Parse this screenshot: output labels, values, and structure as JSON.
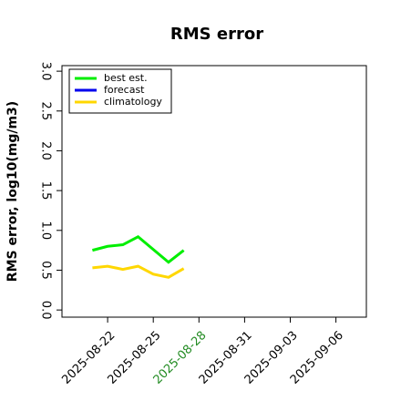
{
  "chart_data": {
    "type": "line",
    "title": "RMS error",
    "ylabel": "RMS error, log10(mg/m3)",
    "x": [
      "2025-08-21",
      "2025-08-22",
      "2025-08-23",
      "2025-08-24",
      "2025-08-25",
      "2025-08-26",
      "2025-08-27"
    ],
    "series": [
      {
        "name": "best est.",
        "color": "#00ee00",
        "values": [
          0.75,
          0.8,
          0.82,
          0.92,
          0.76,
          0.6,
          0.75
        ]
      },
      {
        "name": "forecast",
        "color": "#0000ee",
        "values": [
          null,
          null,
          null,
          null,
          null,
          null,
          null
        ]
      },
      {
        "name": "climatology",
        "color": "#ffd700",
        "values": [
          0.53,
          0.55,
          0.51,
          0.55,
          0.45,
          0.41,
          0.52
        ]
      }
    ],
    "xlim": [
      "2025-08-19",
      "2025-09-08"
    ],
    "xticks": [
      "2025-08-22",
      "2025-08-25",
      "2025-08-28",
      "2025-08-31",
      "2025-09-03",
      "2025-09-06"
    ],
    "xtick_colors": [
      "#000000",
      "#000000",
      "#228b22",
      "#000000",
      "#000000",
      "#000000"
    ],
    "ylim": [
      -0.09,
      3.07
    ],
    "yticks": [
      {
        "value": 0,
        "label": "0.0"
      },
      0.5,
      {
        "value": 1,
        "label": "1.0"
      },
      1.5,
      {
        "value": 2,
        "label": "2.0"
      },
      2.5,
      {
        "value": 3,
        "label": "3.0"
      }
    ],
    "legend": "upper left"
  }
}
